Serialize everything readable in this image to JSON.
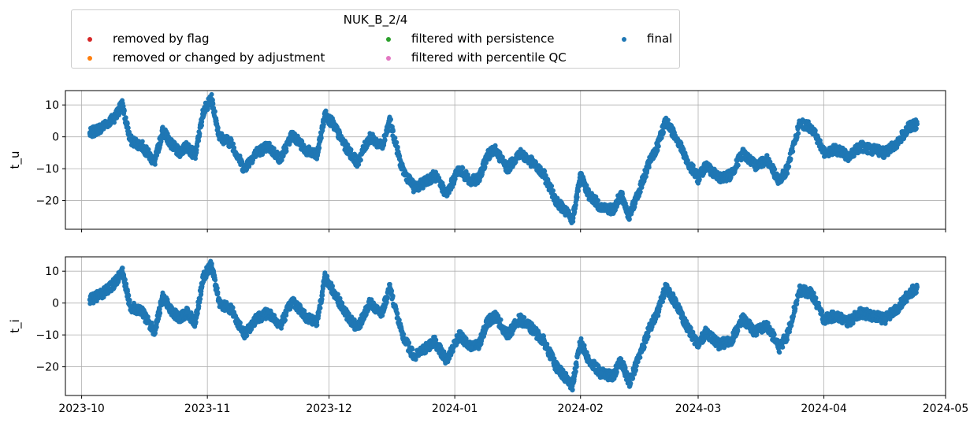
{
  "chart_data": {
    "type": "scatter",
    "legend": {
      "title": "NUK_B_2/4",
      "placement": "top-left, above plots",
      "entries": [
        {
          "label": "removed by flag",
          "color": "#d62728"
        },
        {
          "label": "removed or changed by adjustment",
          "color": "#ff7f0e"
        },
        {
          "label": "filtered with persistence",
          "color": "#2ca02c"
        },
        {
          "label": "filtered with percentile QC",
          "color": "#e377c2"
        },
        {
          "label": "final",
          "color": "#1f77b4"
        }
      ]
    },
    "x_ticks": [
      "2023-10",
      "2023-11",
      "2023-12",
      "2024-01",
      "2024-02",
      "2024-03",
      "2024-04",
      "2024-05"
    ],
    "xlim": [
      "2023-09-27",
      "2024-05-01"
    ],
    "grid": true,
    "panels": [
      {
        "ylabel": "t_u",
        "ylim": [
          -29,
          14.5
        ],
        "y_ticks": [
          10,
          0,
          -10,
          -20
        ],
        "series": [
          {
            "name": "final",
            "color": "#1f77b4",
            "x": [
              "2023-10-03",
              "2023-10-06",
              "2023-10-09",
              "2023-10-11",
              "2023-10-13",
              "2023-10-16",
              "2023-10-19",
              "2023-10-21",
              "2023-10-23",
              "2023-10-25",
              "2023-10-27",
              "2023-10-29",
              "2023-10-31",
              "2023-11-02",
              "2023-11-04",
              "2023-11-07",
              "2023-11-10",
              "2023-11-13",
              "2023-11-16",
              "2023-11-19",
              "2023-11-22",
              "2023-11-25",
              "2023-11-28",
              "2023-11-30",
              "2023-12-02",
              "2023-12-05",
              "2023-12-08",
              "2023-12-11",
              "2023-12-14",
              "2023-12-16",
              "2023-12-19",
              "2023-12-22",
              "2023-12-25",
              "2023-12-27",
              "2023-12-30",
              "2024-01-02",
              "2024-01-05",
              "2024-01-07",
              "2024-01-09",
              "2024-01-11",
              "2024-01-14",
              "2024-01-17",
              "2024-01-20",
              "2024-01-23",
              "2024-01-26",
              "2024-01-28",
              "2024-01-30",
              "2024-02-01",
              "2024-02-03",
              "2024-02-06",
              "2024-02-09",
              "2024-02-11",
              "2024-02-13",
              "2024-02-16",
              "2024-02-18",
              "2024-02-20",
              "2024-02-22",
              "2024-02-25",
              "2024-02-27",
              "2024-03-01",
              "2024-03-03",
              "2024-03-06",
              "2024-03-09",
              "2024-03-12",
              "2024-03-15",
              "2024-03-18",
              "2024-03-21",
              "2024-03-23",
              "2024-03-26",
              "2024-03-29",
              "2024-04-01",
              "2024-04-04",
              "2024-04-07",
              "2024-04-10",
              "2024-04-13",
              "2024-04-16",
              "2024-04-19",
              "2024-04-22",
              "2024-04-24"
            ],
            "y": [
              1,
              3,
              6,
              10,
              -1,
              -3,
              -8,
              2,
              -2,
              -5,
              -3,
              -6,
              8,
              12,
              0,
              -2,
              -10,
              -5,
              -3,
              -7,
              1,
              -4,
              -6,
              7,
              4,
              -3,
              -8,
              0,
              -3,
              5,
              -10,
              -16,
              -14,
              -12,
              -18,
              -10,
              -14,
              -13,
              -6,
              -4,
              -10,
              -5,
              -8,
              -12,
              -20,
              -23,
              -26,
              -12,
              -18,
              -22,
              -23,
              -18,
              -25,
              -15,
              -8,
              -3,
              5,
              -1,
              -7,
              -13,
              -9,
              -13,
              -12,
              -5,
              -9,
              -7,
              -14,
              -10,
              4,
              3,
              -5,
              -4,
              -6,
              -3,
              -4,
              -5,
              -2,
              3,
              4
            ]
          }
        ]
      },
      {
        "ylabel": "t_i",
        "ylim": [
          -29,
          14.5
        ],
        "y_ticks": [
          10,
          0,
          -10,
          -20
        ],
        "series": [
          {
            "name": "final",
            "color": "#1f77b4",
            "x": [
              "2023-10-03",
              "2023-10-06",
              "2023-10-09",
              "2023-10-11",
              "2023-10-13",
              "2023-10-16",
              "2023-10-19",
              "2023-10-21",
              "2023-10-23",
              "2023-10-25",
              "2023-10-27",
              "2023-10-29",
              "2023-10-31",
              "2023-11-02",
              "2023-11-04",
              "2023-11-07",
              "2023-11-10",
              "2023-11-13",
              "2023-11-16",
              "2023-11-19",
              "2023-11-22",
              "2023-11-25",
              "2023-11-28",
              "2023-11-30",
              "2023-12-02",
              "2023-12-05",
              "2023-12-08",
              "2023-12-11",
              "2023-12-14",
              "2023-12-16",
              "2023-12-19",
              "2023-12-22",
              "2023-12-25",
              "2023-12-27",
              "2023-12-30",
              "2024-01-02",
              "2024-01-05",
              "2024-01-07",
              "2024-01-09",
              "2024-01-11",
              "2024-01-14",
              "2024-01-17",
              "2024-01-20",
              "2024-01-23",
              "2024-01-26",
              "2024-01-28",
              "2024-01-30",
              "2024-02-01",
              "2024-02-03",
              "2024-02-06",
              "2024-02-09",
              "2024-02-11",
              "2024-02-13",
              "2024-02-16",
              "2024-02-18",
              "2024-02-20",
              "2024-02-22",
              "2024-02-25",
              "2024-02-27",
              "2024-03-01",
              "2024-03-03",
              "2024-03-06",
              "2024-03-09",
              "2024-03-12",
              "2024-03-15",
              "2024-03-18",
              "2024-03-21",
              "2024-03-23",
              "2024-03-26",
              "2024-03-29",
              "2024-04-01",
              "2024-04-04",
              "2024-04-07",
              "2024-04-10",
              "2024-04-13",
              "2024-04-16",
              "2024-04-19",
              "2024-04-22",
              "2024-04-24"
            ],
            "y": [
              1,
              3,
              6,
              10,
              -1,
              -3,
              -9,
              2,
              -2,
              -5,
              -3,
              -6,
              8,
              12,
              0,
              -2,
              -10,
              -5,
              -3,
              -7,
              1,
              -4,
              -6,
              8,
              4,
              -3,
              -8,
              0,
              -3,
              5,
              -10,
              -17,
              -14,
              -12,
              -18,
              -10,
              -14,
              -13,
              -6,
              -4,
              -10,
              -5,
              -8,
              -12,
              -20,
              -23,
              -26,
              -12,
              -18,
              -22,
              -23,
              -18,
              -25,
              -15,
              -8,
              -3,
              5,
              -1,
              -7,
              -13,
              -9,
              -13,
              -12,
              -5,
              -9,
              -7,
              -14,
              -10,
              4,
              3,
              -5,
              -4,
              -6,
              -3,
              -4,
              -5,
              -2,
              3,
              5
            ]
          }
        ]
      }
    ]
  }
}
